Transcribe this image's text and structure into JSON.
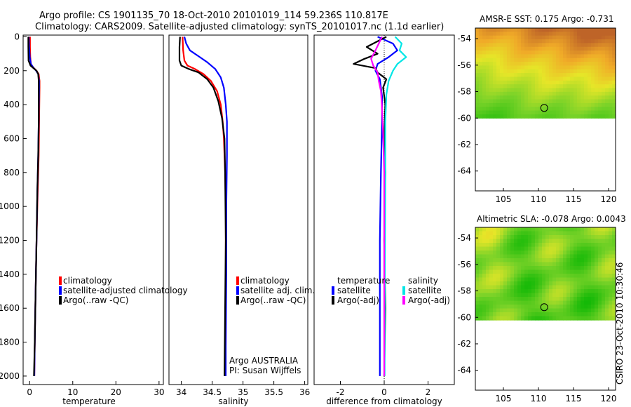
{
  "title": {
    "line1": "Argo profile: CS 1901135_70 18-Oct-2010 20101019_114 59.236S 110.817E",
    "line2": "Climatology: CARS2009. Satellite-adjusted climatology: synTS_20101017.nc (1.1d earlier)"
  },
  "colors": {
    "climatology": "#ff0000",
    "satellite": "#0000ff",
    "argo": "#000000",
    "salinity_satellite": "#00e6e6",
    "salinity_argo": "#ff00ff"
  },
  "side_text": "CSIRO 23-Oct-2010 10:30:46",
  "depth_axis": {
    "ylim": [
      2050,
      -10
    ],
    "ticks": [
      0,
      200,
      400,
      600,
      800,
      1000,
      1200,
      1400,
      1600,
      1800,
      2000
    ],
    "tick_labels": [
      "0",
      "200",
      "400",
      "600",
      "800",
      "1000",
      "1200",
      "1400",
      "1600",
      "1800",
      "2000"
    ]
  },
  "chart_data": [
    {
      "type": "line",
      "id": "temperature",
      "xlabel": "temperature",
      "xlim": [
        -1.5,
        31
      ],
      "xticks": [
        0,
        10,
        20,
        30
      ],
      "xtick_labels": [
        "0",
        "10",
        "20",
        "30"
      ],
      "legend": [
        "climatology",
        "satellite-adjusted climatology",
        "Argo(..raw -QC)"
      ],
      "series": [
        {
          "name": "climatology",
          "color": "#ff0000",
          "x": [
            0.1,
            0.1,
            0.15,
            0.3,
            0.8,
            1.6,
            2.1,
            2.3,
            2.3,
            2.2,
            2.1,
            1.9,
            1.6,
            1.4,
            1.2,
            1.1
          ],
          "depth": [
            0,
            60,
            120,
            160,
            180,
            200,
            220,
            260,
            300,
            500,
            700,
            900,
            1200,
            1500,
            1800,
            2000
          ]
        },
        {
          "name": "satellite-adjusted climatology",
          "color": "#0000ff",
          "x": [
            -0.2,
            -0.1,
            0.05,
            0.3,
            0.8,
            1.5,
            2.0,
            2.2,
            2.2,
            2.1,
            2.0,
            1.8,
            1.6,
            1.4,
            1.2,
            1.1
          ],
          "depth": [
            0,
            60,
            120,
            160,
            180,
            200,
            220,
            260,
            300,
            500,
            700,
            900,
            1200,
            1500,
            1800,
            2000
          ]
        },
        {
          "name": "Argo(..raw -QC)",
          "color": "#000000",
          "x": [
            -0.3,
            -0.3,
            -0.25,
            0.2,
            0.9,
            1.6,
            2.0,
            2.1,
            2.1,
            2.1,
            2.0,
            1.8,
            1.6,
            1.4,
            1.2,
            1.0
          ],
          "depth": [
            0,
            60,
            140,
            170,
            185,
            200,
            220,
            260,
            300,
            500,
            700,
            900,
            1200,
            1500,
            1800,
            2000
          ]
        }
      ]
    },
    {
      "type": "line",
      "id": "salinity",
      "xlabel": "salinity",
      "xlim": [
        33.8,
        36.05
      ],
      "xticks": [
        34,
        34.5,
        35,
        35.5,
        36
      ],
      "xtick_labels": [
        "34",
        "34.5",
        "35",
        "35.5",
        "36"
      ],
      "legend": [
        "climatology",
        "satellite adj. clim.",
        "Argo(..raw -QC)"
      ],
      "annotation": [
        "Argo AUSTRALIA",
        "PI: Susan Wijffels"
      ],
      "series": [
        {
          "name": "climatology",
          "color": "#ff0000",
          "x": [
            34.02,
            34.03,
            34.05,
            34.1,
            34.22,
            34.36,
            34.48,
            34.58,
            34.64,
            34.67,
            34.69,
            34.71,
            34.72,
            34.72,
            34.72,
            34.71
          ],
          "depth": [
            0,
            80,
            140,
            170,
            190,
            220,
            260,
            320,
            400,
            500,
            600,
            800,
            1000,
            1400,
            1800,
            2000
          ]
        },
        {
          "name": "satellite adj. clim.",
          "color": "#0000ff",
          "x": [
            34.05,
            34.08,
            34.14,
            34.3,
            34.42,
            34.55,
            34.64,
            34.69,
            34.72,
            34.74,
            34.74,
            34.73,
            34.73,
            34.72,
            34.72
          ],
          "depth": [
            0,
            40,
            80,
            120,
            150,
            190,
            240,
            300,
            400,
            500,
            700,
            1000,
            1400,
            1800,
            2000
          ]
        },
        {
          "name": "Argo(..raw -QC)",
          "color": "#000000",
          "x": [
            33.98,
            33.97,
            33.97,
            34.0,
            34.12,
            34.28,
            34.42,
            34.52,
            34.6,
            34.66,
            34.7,
            34.71,
            34.72,
            34.71,
            34.7
          ],
          "depth": [
            0,
            60,
            140,
            170,
            190,
            210,
            250,
            300,
            380,
            480,
            600,
            800,
            1200,
            1600,
            2000
          ]
        }
      ]
    },
    {
      "type": "line",
      "id": "difference",
      "xlabel": "difference from climatology",
      "xlim": [
        -3.2,
        3.2
      ],
      "xticks": [
        -2,
        0,
        2
      ],
      "xtick_labels": [
        "-2",
        "0",
        "2"
      ],
      "legend_headers": [
        "temperature",
        "salinity"
      ],
      "legend": [
        "satellite",
        "Argo(-adj)",
        "satellite",
        "Argo(-adj)"
      ],
      "series": [
        {
          "name": "temperature satellite",
          "color": "#0000ff",
          "x": [
            -0.3,
            0.4,
            0.6,
            0.2,
            -0.3,
            -0.4,
            -0.2,
            -0.1,
            -0.1,
            -0.15,
            -0.2,
            -0.2,
            -0.2
          ],
          "depth": [
            0,
            40,
            80,
            120,
            160,
            200,
            250,
            350,
            500,
            800,
            1200,
            1600,
            2000
          ]
        },
        {
          "name": "temperature Argo(-adj)",
          "color": "#000000",
          "x": [
            0.1,
            -0.8,
            -0.3,
            -0.9,
            -1.4,
            -0.4,
            -0.3,
            0.1,
            -0.05,
            0.05,
            0.0,
            0.05,
            0.0,
            0.05,
            0.0
          ],
          "depth": [
            0,
            60,
            100,
            130,
            160,
            185,
            210,
            250,
            300,
            400,
            600,
            800,
            1200,
            1600,
            2000
          ]
        },
        {
          "name": "salinity satellite",
          "color": "#00e6e6",
          "x": [
            0.5,
            0.8,
            0.7,
            1.0,
            0.6,
            0.4,
            0.2,
            0.1,
            0.05,
            0.05,
            0.03,
            0.02
          ],
          "depth": [
            0,
            40,
            80,
            120,
            160,
            200,
            260,
            340,
            500,
            800,
            1400,
            2000
          ]
        },
        {
          "name": "salinity Argo(-adj)",
          "color": "#ff00ff",
          "x": [
            -0.1,
            -0.4,
            -0.6,
            -0.5,
            -0.3,
            -0.25,
            -0.15,
            -0.1,
            -0.05,
            0.0,
            0.0
          ],
          "depth": [
            0,
            80,
            130,
            170,
            210,
            260,
            320,
            420,
            560,
            800,
            2000
          ]
        }
      ]
    },
    {
      "type": "heatmap",
      "id": "sst-map",
      "title": "AMSR-E SST: 0.175 Argo: -0.731",
      "xlim": [
        101,
        121
      ],
      "ylim": [
        -65.5,
        -53.2
      ],
      "xticks": [
        105,
        110,
        115,
        120
      ],
      "xtick_labels": [
        "105",
        "110",
        "115",
        "120"
      ],
      "yticks": [
        -54,
        -56,
        -58,
        -60,
        -62,
        -64
      ],
      "ytick_labels": [
        "-54",
        "-56",
        "-58",
        "-60",
        "-62",
        "-64"
      ],
      "data_lat_range": [
        -60,
        -53.2
      ],
      "marker": {
        "lon": 110.817,
        "lat": -59.236
      }
    },
    {
      "type": "heatmap",
      "id": "sla-map",
      "title": "Altimetric SLA: -0.078 Argo: 0.0043",
      "xlim": [
        101,
        121
      ],
      "ylim": [
        -65.5,
        -53.2
      ],
      "xticks": [
        105,
        110,
        115,
        120
      ],
      "xtick_labels": [
        "105",
        "110",
        "115",
        "120"
      ],
      "yticks": [
        -54,
        -56,
        -58,
        -60,
        -62,
        -64
      ],
      "ytick_labels": [
        "-54",
        "-56",
        "-58",
        "-60",
        "-62",
        "-64"
      ],
      "data_lat_range": [
        -60.2,
        -53.2
      ],
      "marker": {
        "lon": 110.817,
        "lat": -59.236
      }
    }
  ]
}
